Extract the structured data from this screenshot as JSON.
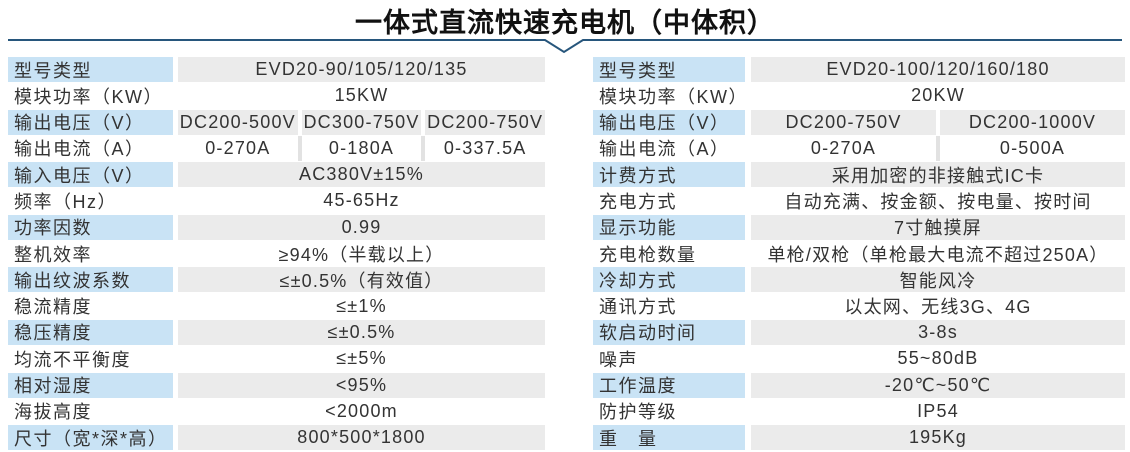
{
  "title": "一体式直流快速充电机（中体积）",
  "colors": {
    "label_bg": "#c9e3f5",
    "value_bg": "#ebebeb",
    "divider_line": "#27567c",
    "text": "#333333"
  },
  "left_table": {
    "rows": [
      {
        "label": "型号类型",
        "values": [
          "EVD20-90/105/120/135"
        ]
      },
      {
        "label": "模块功率（KW）",
        "values": [
          "15KW"
        ]
      },
      {
        "label": "输出电压（V）",
        "values": [
          "DC200-500V",
          "DC300-750V",
          "DC200-750V"
        ]
      },
      {
        "label": "输出电流（A）",
        "values": [
          "0-270A",
          "0-180A",
          "0-337.5A"
        ]
      },
      {
        "label": "输入电压（V）",
        "values": [
          "AC380V±15%"
        ]
      },
      {
        "label": "频率（Hz）",
        "values": [
          "45-65Hz"
        ]
      },
      {
        "label": "功率因数",
        "values": [
          "0.99"
        ]
      },
      {
        "label": "整机效率",
        "values": [
          "≥94%（半载以上）"
        ]
      },
      {
        "label": "输出纹波系数",
        "values": [
          "≤±0.5%（有效值）"
        ]
      },
      {
        "label": "稳流精度",
        "values": [
          "≤±1%"
        ]
      },
      {
        "label": "稳压精度",
        "values": [
          "≤±0.5%"
        ]
      },
      {
        "label": "均流不平衡度",
        "values": [
          "≤±5%"
        ]
      },
      {
        "label": "相对湿度",
        "values": [
          "<95%"
        ]
      },
      {
        "label": "海拔高度",
        "values": [
          "<2000m"
        ]
      },
      {
        "label": "尺寸（宽*深*高）",
        "values": [
          "800*500*1800"
        ]
      }
    ]
  },
  "right_table": {
    "rows": [
      {
        "label": "型号类型",
        "values": [
          "EVD20-100/120/160/180"
        ]
      },
      {
        "label": "模块功率（KW）",
        "values": [
          "20KW"
        ]
      },
      {
        "label": "输出电压（V）",
        "values": [
          "DC200-750V",
          "DC200-1000V"
        ]
      },
      {
        "label": "输出电流（A）",
        "values": [
          "0-270A",
          "0-500A"
        ]
      },
      {
        "label": "计费方式",
        "values": [
          "采用加密的非接触式IC卡"
        ]
      },
      {
        "label": "充电方式",
        "values": [
          "自动充满、按金额、按电量、按时间"
        ]
      },
      {
        "label": "显示功能",
        "values": [
          "7寸触摸屏"
        ]
      },
      {
        "label": "充电枪数量",
        "values": [
          "单枪/双枪（单枪最大电流不超过250A）"
        ]
      },
      {
        "label": "冷却方式",
        "values": [
          "智能风冷"
        ]
      },
      {
        "label": "通讯方式",
        "values": [
          "以太网、无线3G、4G"
        ]
      },
      {
        "label": "软启动时间",
        "values": [
          "3-8s"
        ]
      },
      {
        "label": "噪声",
        "values": [
          "55~80dB"
        ]
      },
      {
        "label": "工作温度",
        "values": [
          "-20℃~50℃"
        ]
      },
      {
        "label": "防护等级",
        "values": [
          "IP54"
        ]
      },
      {
        "label": "重　量",
        "values": [
          "195Kg"
        ]
      }
    ]
  }
}
